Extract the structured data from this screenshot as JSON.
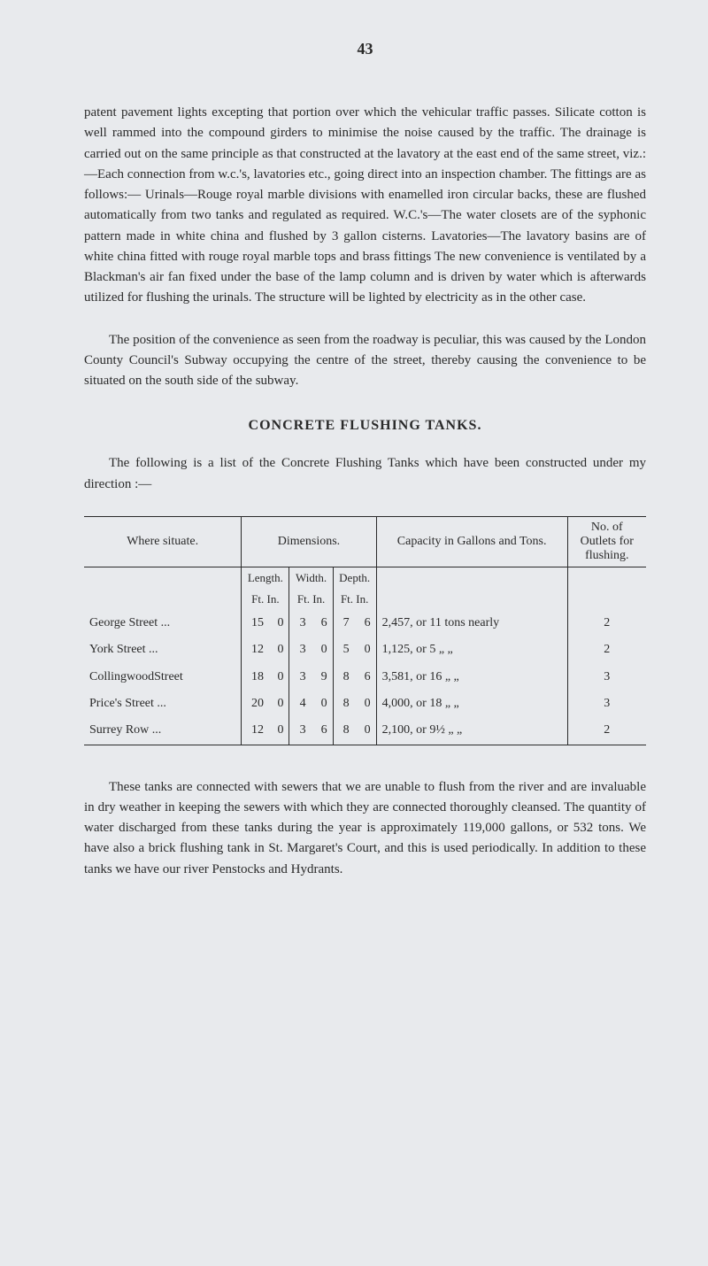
{
  "page_number": "43",
  "paragraphs": {
    "p1": "patent pavement lights excepting that portion over which the vehicular traffic passes. Silicate cotton is well rammed into the compound girders to minimise the noise caused by the traffic. The drainage is carried out on the same principle as that constructed at the lavatory at the east end of the same street, viz.:—Each connection from w.c.'s, lavatories etc., going direct into an inspection chamber. The fittings are as follows:— Urinals—Rouge royal marble divisions with enamelled iron circular backs, these are flushed automatically from two tanks and regulated as required. W.C.'s—The water closets are of the syphonic pattern made in white china and flushed by 3 gallon cisterns. Lavatories—The lavatory basins are of white china fitted with rouge royal marble tops and brass fittings The new convenience is ventilated by a Blackman's air fan fixed under the base of the lamp column and is driven by water which is afterwards utilized for flushing the urinals. The structure will be lighted by electricity as in the other case.",
    "p2": "The position of the convenience as seen from the roadway is peculiar, this was caused by the London County Council's Subway occupying the centre of the street, thereby causing the convenience to be situated on the south side of the subway.",
    "section_title": "CONCRETE FLUSHING TANKS.",
    "p3": "The following is a list of the Concrete Flushing Tanks which have been constructed under my direction :—",
    "p4": "These tanks are connected with sewers that we are unable to flush from the river and are invaluable in dry weather in keeping the sewers with which they are connected thoroughly cleansed. The quantity of water discharged from these tanks during the year is approximately 119,000 gallons, or 532 tons. We have also a brick flushing tank in St. Margaret's Court, and this is used periodically. In addition to these tanks we have our river Penstocks and Hydrants."
  },
  "table": {
    "headers": {
      "situate": "Where situate.",
      "dimensions": "Dimensions.",
      "capacity": "Capacity in Gallons and Tons.",
      "outlets": "No. of Outlets for flushing."
    },
    "subheaders": {
      "length": "Length.",
      "width": "Width.",
      "depth": "Depth.",
      "ftin": "Ft. In."
    },
    "rows": [
      {
        "name": "George Street ...",
        "len_ft": "15",
        "len_in": "0",
        "wid_ft": "3",
        "wid_in": "6",
        "dep_ft": "7",
        "dep_in": "6",
        "capacity": "2,457, or 11 tons nearly",
        "outlets": "2"
      },
      {
        "name": "York Street ...",
        "len_ft": "12",
        "len_in": "0",
        "wid_ft": "3",
        "wid_in": "0",
        "dep_ft": "5",
        "dep_in": "0",
        "capacity": "1,125, or 5 „ „",
        "outlets": "2"
      },
      {
        "name": "CollingwoodStreet",
        "len_ft": "18",
        "len_in": "0",
        "wid_ft": "3",
        "wid_in": "9",
        "dep_ft": "8",
        "dep_in": "6",
        "capacity": "3,581, or 16 „ „",
        "outlets": "3"
      },
      {
        "name": "Price's Street ...",
        "len_ft": "20",
        "len_in": "0",
        "wid_ft": "4",
        "wid_in": "0",
        "dep_ft": "8",
        "dep_in": "0",
        "capacity": "4,000, or 18 „ „",
        "outlets": "3"
      },
      {
        "name": "Surrey Row ...",
        "len_ft": "12",
        "len_in": "0",
        "wid_ft": "3",
        "wid_in": "6",
        "dep_ft": "8",
        "dep_in": "0",
        "capacity": "2,100, or 9½ „ „",
        "outlets": "2"
      }
    ]
  }
}
